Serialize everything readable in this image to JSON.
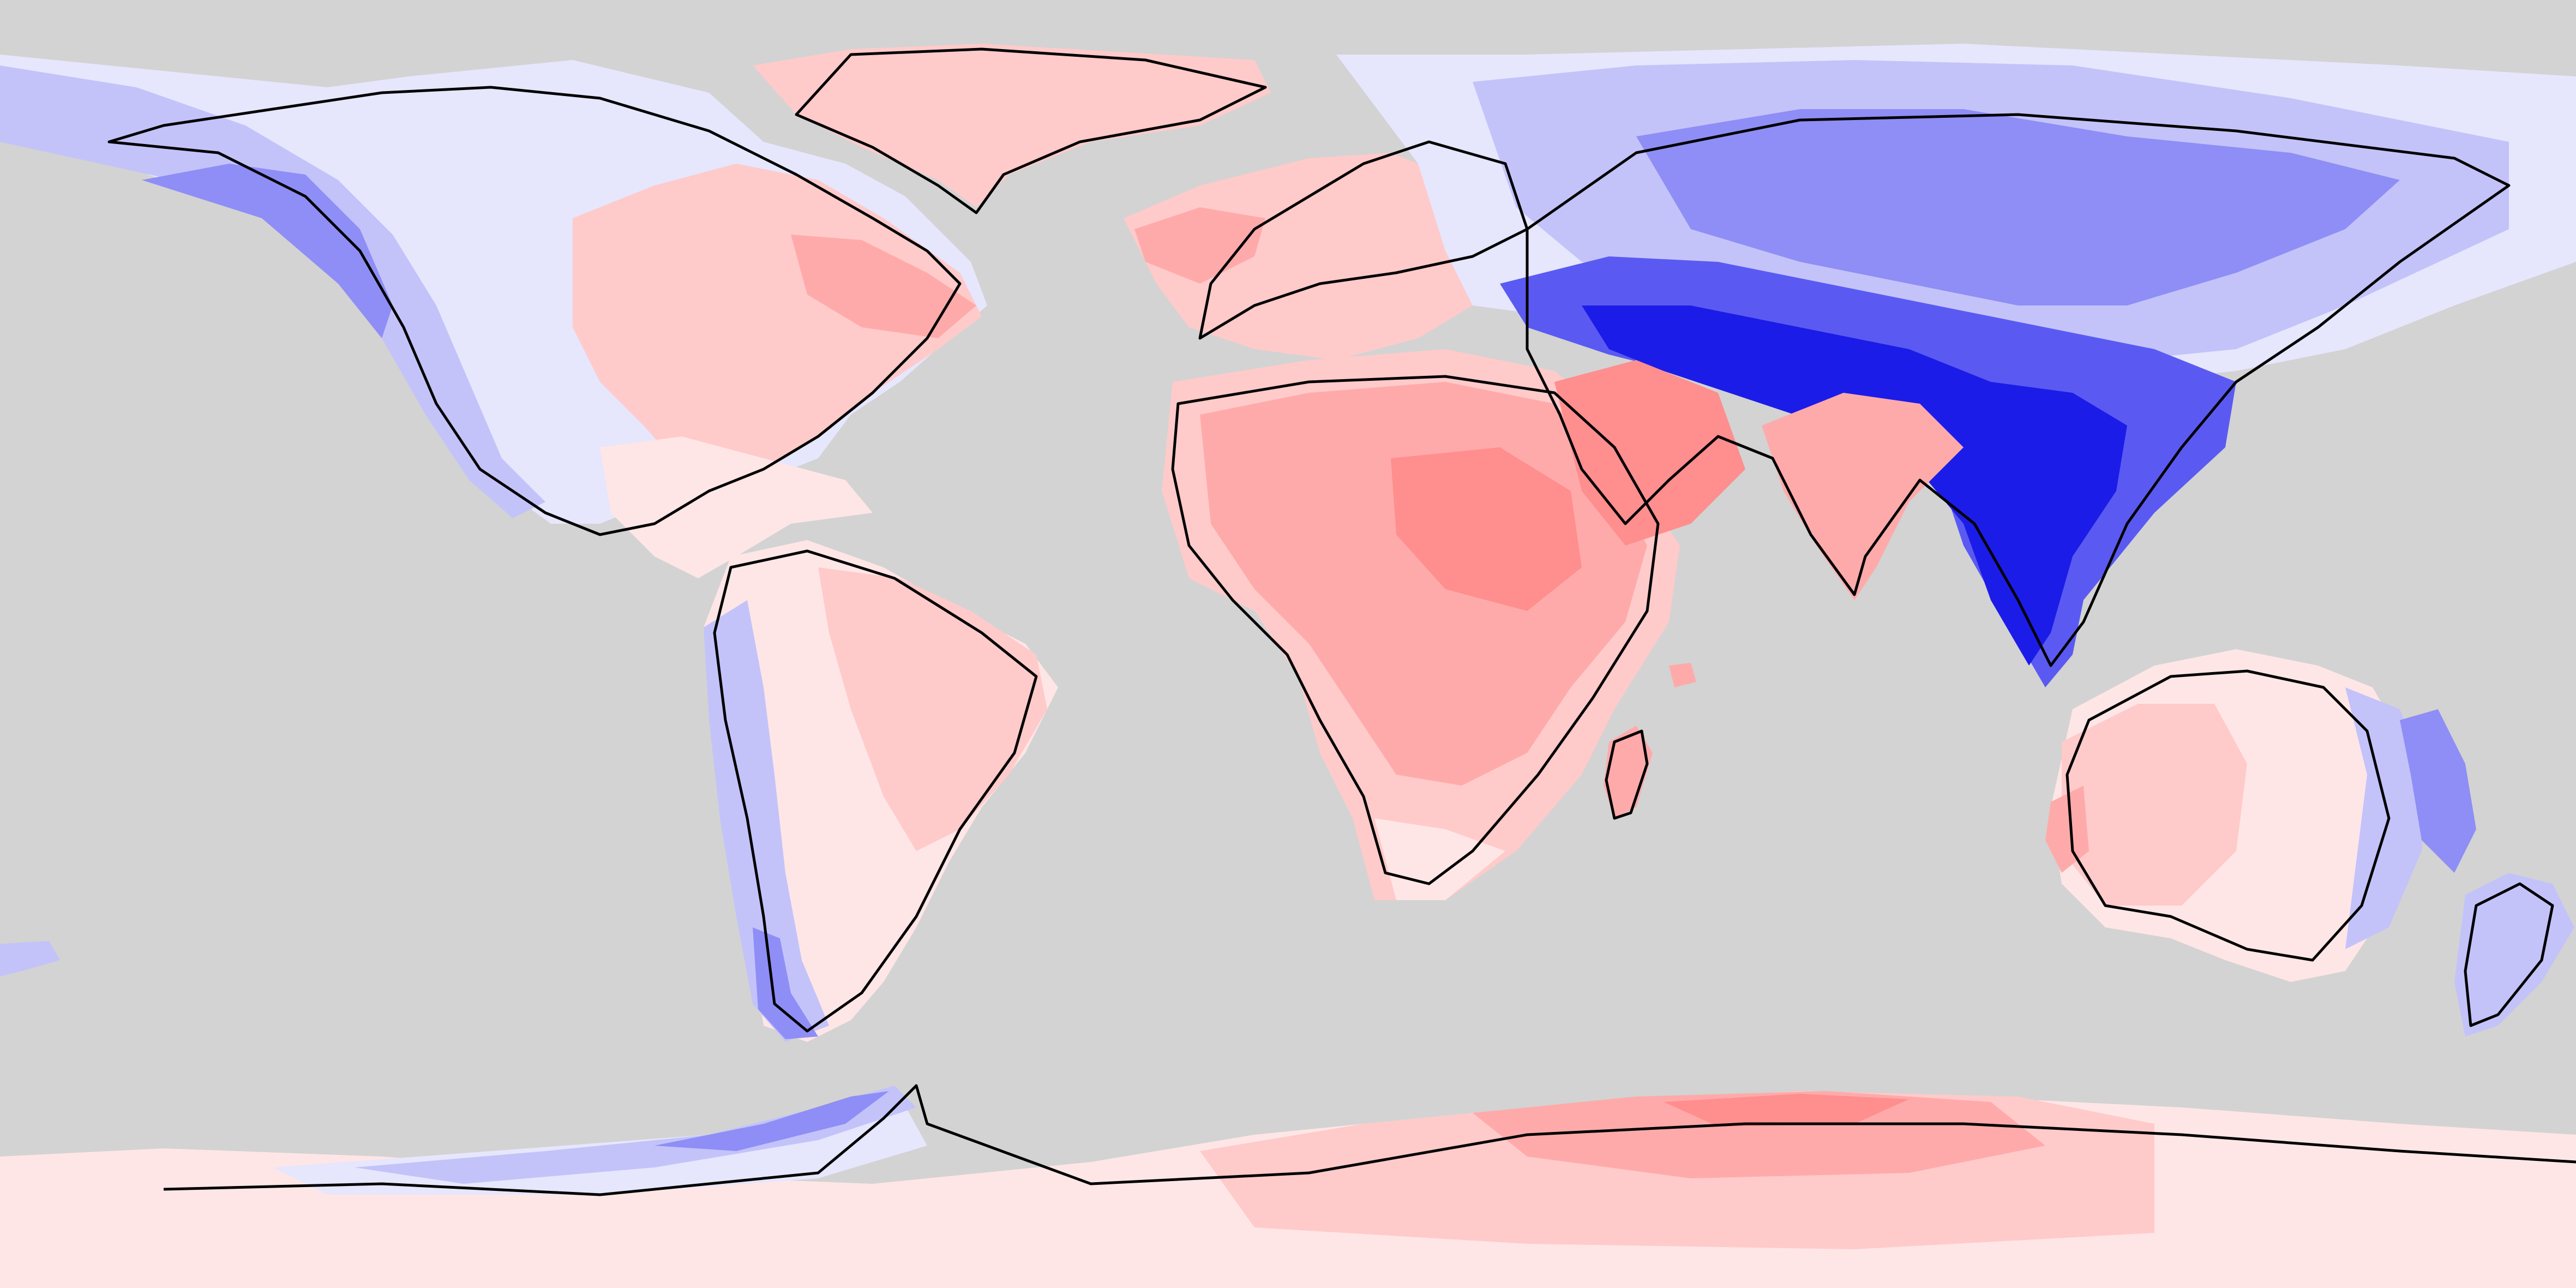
{
  "map": {
    "projection": "equirectangular",
    "view": "global",
    "ocean_color": "#d3d3d3",
    "coastline_color": "#000000",
    "legend": null,
    "colorbar": null
  },
  "palette": {
    "strong_negative": "#1c1ce8",
    "negative": "#5a5af2",
    "moderate_negative": "#8e8ef6",
    "weak_negative": "#c3c3fa",
    "slight_negative": "#e6e6fd",
    "neutral": "#ffffff",
    "slight_positive": "#ffe6e6",
    "weak_positive": "#ffcaca",
    "moderate_positive": "#ffaaaa",
    "positive": "#ff8e8e"
  },
  "regions": [
    {
      "name": "greenland",
      "level": "weak_positive"
    },
    {
      "name": "north-america-east",
      "level": "weak_positive"
    },
    {
      "name": "north-america-west",
      "level": "weak_negative"
    },
    {
      "name": "central-america",
      "level": "slight_negative"
    },
    {
      "name": "south-america-east",
      "level": "weak_positive"
    },
    {
      "name": "south-america-andes",
      "level": "weak_negative"
    },
    {
      "name": "europe-west",
      "level": "weak_positive"
    },
    {
      "name": "northern-eurasia",
      "level": "moderate_negative"
    },
    {
      "name": "central-asia",
      "level": "strong_negative"
    },
    {
      "name": "southeast-asia",
      "level": "strong_negative"
    },
    {
      "name": "africa",
      "level": "moderate_positive"
    },
    {
      "name": "arabia",
      "level": "positive"
    },
    {
      "name": "india",
      "level": "moderate_positive"
    },
    {
      "name": "australia",
      "level": "weak_positive"
    },
    {
      "name": "new-zealand",
      "level": "weak_negative"
    },
    {
      "name": "antarctic-peninsula",
      "level": "weak_negative"
    },
    {
      "name": "east-antarctica",
      "level": "moderate_positive"
    }
  ]
}
